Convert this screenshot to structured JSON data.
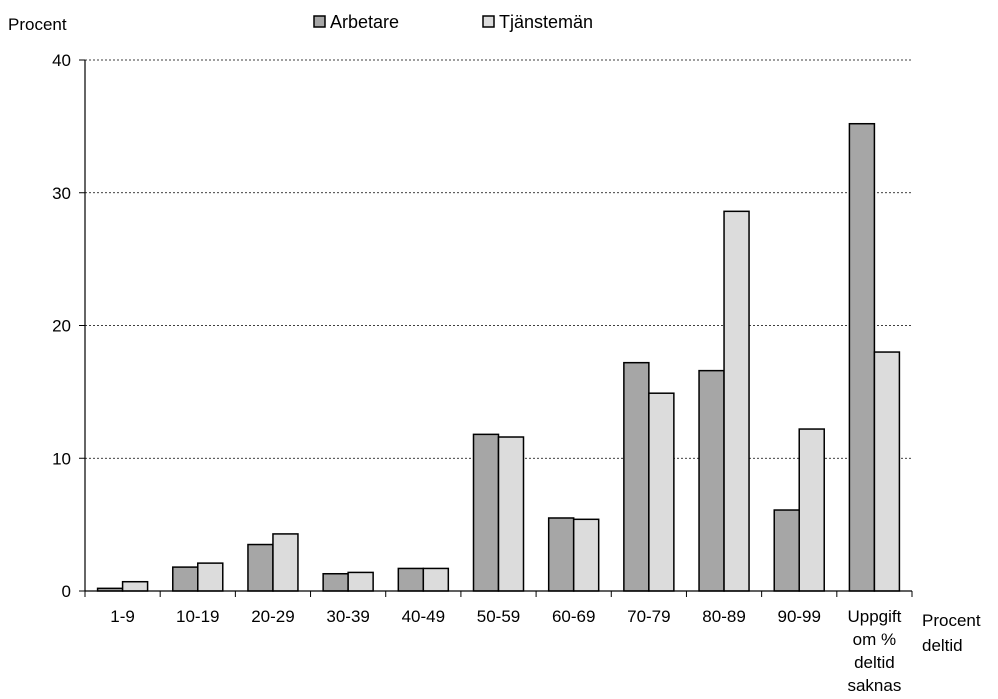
{
  "chart_data": {
    "type": "bar",
    "ylabel": "Procent",
    "xlabel": [
      "Procent",
      "deltid"
    ],
    "ylim": [
      0,
      40
    ],
    "yticks": [
      0,
      10,
      20,
      30,
      40
    ],
    "grid": true,
    "legend_position": "top",
    "categories": [
      [
        "1-9"
      ],
      [
        "10-19"
      ],
      [
        "20-29"
      ],
      [
        "30-39"
      ],
      [
        "40-49"
      ],
      [
        "50-59"
      ],
      [
        "60-69"
      ],
      [
        "70-79"
      ],
      [
        "80-89"
      ],
      [
        "90-99"
      ],
      [
        "Uppgift",
        "om %",
        "deltid",
        "saknas"
      ]
    ],
    "series": [
      {
        "name": "Arbetare",
        "color": "#a6a6a6",
        "values": [
          0.2,
          1.8,
          3.5,
          1.3,
          1.7,
          11.8,
          5.5,
          17.2,
          16.6,
          6.1,
          35.2
        ]
      },
      {
        "name": "Tjänstemän",
        "color": "#dcdcdc",
        "values": [
          0.7,
          2.1,
          4.3,
          1.4,
          1.7,
          11.6,
          5.4,
          14.9,
          28.6,
          12.2,
          18.0
        ]
      }
    ]
  }
}
